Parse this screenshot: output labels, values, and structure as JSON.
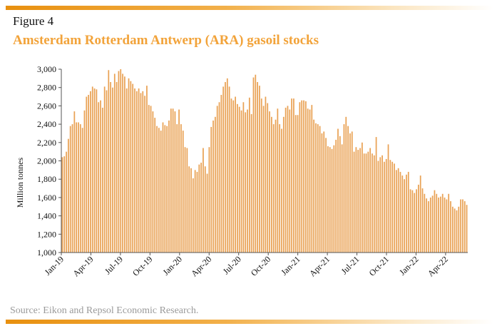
{
  "header": {
    "figure_label": "Figure 4",
    "title": "Amsterdam Rotterdam Antwerp (ARA) gasoil stocks"
  },
  "footer": {
    "source": "Source: Eikon and Repsol Economic Research."
  },
  "colors": {
    "accent": "#f2a33a",
    "bar": "#e9a255",
    "rule": "#e8900f"
  },
  "chart_data": {
    "type": "bar",
    "ylabel": "Million tonnes",
    "ylim": [
      1000,
      3000
    ],
    "yticks": [
      "1,000",
      "1,200",
      "1,400",
      "1,600",
      "1,800",
      "2,000",
      "2,200",
      "2,400",
      "2,600",
      "2,800",
      "3,000"
    ],
    "xtick_labels": [
      "Jan-19",
      "Apr-19",
      "Jul-19",
      "Oct-19",
      "Jan-20",
      "Apr-20",
      "Jul-20",
      "Oct-20",
      "Jan-21",
      "Apr-21",
      "Jul-21",
      "Oct-21",
      "Jan-22",
      "Apr-22"
    ],
    "grid": false,
    "legend": "none",
    "values": [
      2040,
      2050,
      2100,
      2240,
      2380,
      2400,
      2540,
      2420,
      2420,
      2400,
      2360,
      2550,
      2700,
      2720,
      2760,
      2810,
      2790,
      2780,
      2640,
      2660,
      2580,
      2810,
      2770,
      2990,
      2860,
      2800,
      2950,
      2860,
      2980,
      3000,
      2950,
      2920,
      2790,
      2900,
      2870,
      2840,
      2790,
      2760,
      2790,
      2740,
      2760,
      2710,
      2820,
      2610,
      2600,
      2540,
      2470,
      2380,
      2360,
      2330,
      2420,
      2390,
      2380,
      2440,
      2570,
      2570,
      2540,
      2400,
      2560,
      2400,
      2330,
      2150,
      2140,
      1940,
      1920,
      1810,
      1900,
      1880,
      1960,
      1980,
      2140,
      1940,
      1860,
      2150,
      2370,
      2440,
      2480,
      2600,
      2640,
      2720,
      2810,
      2860,
      2900,
      2810,
      2680,
      2660,
      2700,
      2620,
      2590,
      2550,
      2640,
      2530,
      2560,
      2690,
      2510,
      2910,
      2940,
      2860,
      2820,
      2680,
      2600,
      2700,
      2630,
      2540,
      2480,
      2400,
      2450,
      2570,
      2400,
      2350,
      2480,
      2580,
      2600,
      2560,
      2680,
      2680,
      2500,
      2500,
      2640,
      2660,
      2660,
      2650,
      2570,
      2560,
      2610,
      2450,
      2410,
      2400,
      2380,
      2300,
      2320,
      2250,
      2160,
      2150,
      2130,
      2170,
      2230,
      2350,
      2270,
      2180,
      2400,
      2480,
      2380,
      2300,
      2320,
      2100,
      2150,
      2120,
      2140,
      2200,
      2080,
      2080,
      2100,
      2140,
      2080,
      2060,
      2260,
      2000,
      2040,
      2060,
      1990,
      2020,
      2180,
      2010,
      1990,
      1970,
      1900,
      1920,
      1880,
      1840,
      1800,
      1850,
      1880,
      1690,
      1680,
      1650,
      1690,
      1740,
      1840,
      1700,
      1640,
      1590,
      1560,
      1600,
      1620,
      1680,
      1640,
      1600,
      1610,
      1640,
      1600,
      1580,
      1640,
      1560,
      1500,
      1480,
      1460,
      1500,
      1580,
      1580,
      1560,
      1520
    ]
  }
}
